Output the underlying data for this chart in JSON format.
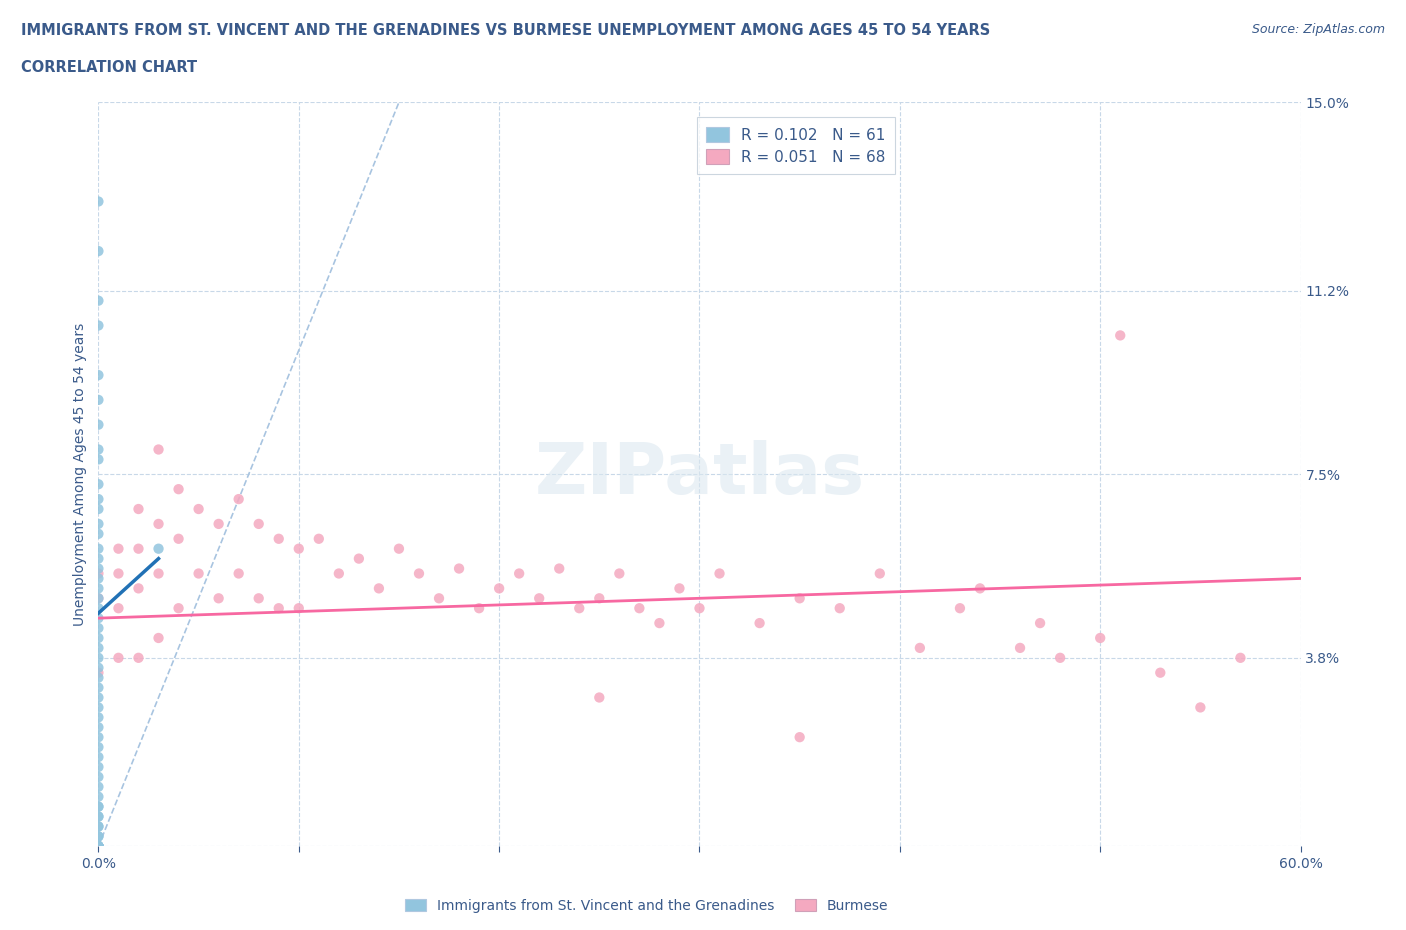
{
  "title_line1": "IMMIGRANTS FROM ST. VINCENT AND THE GRENADINES VS BURMESE UNEMPLOYMENT AMONG AGES 45 TO 54 YEARS",
  "title_line2": "CORRELATION CHART",
  "source_text": "Source: ZipAtlas.com",
  "ylabel": "Unemployment Among Ages 45 to 54 years",
  "xlim": [
    0.0,
    0.6
  ],
  "ylim": [
    0.0,
    0.15
  ],
  "ytick_positions": [
    0.0,
    0.038,
    0.075,
    0.112,
    0.15
  ],
  "yticklabels_right": [
    "",
    "3.8%",
    "7.5%",
    "11.2%",
    "15.0%"
  ],
  "color_blue_scatter": "#92c5de",
  "color_pink_scatter": "#f4a9c0",
  "color_blue_line": "#2171b5",
  "color_pink_line": "#f768a1",
  "color_diag": "#a8c4e0",
  "color_grid": "#c8d8e8",
  "color_text": "#3a5a8a",
  "legend_label1": "Immigrants from St. Vincent and the Grenadines",
  "legend_label2": "Burmese",
  "blue_x": [
    0.0,
    0.0,
    0.0,
    0.0,
    0.0,
    0.0,
    0.0,
    0.0,
    0.0,
    0.0,
    0.0,
    0.0,
    0.0,
    0.0,
    0.0,
    0.0,
    0.0,
    0.0,
    0.0,
    0.0,
    0.0,
    0.0,
    0.0,
    0.0,
    0.0,
    0.0,
    0.0,
    0.0,
    0.0,
    0.0,
    0.0,
    0.0,
    0.0,
    0.0,
    0.0,
    0.0,
    0.0,
    0.0,
    0.0,
    0.0,
    0.0,
    0.0,
    0.0,
    0.0,
    0.0,
    0.0,
    0.0,
    0.0,
    0.0,
    0.0,
    0.0,
    0.0,
    0.0,
    0.0,
    0.0,
    0.0,
    0.0,
    0.0,
    0.0,
    0.0,
    0.03
  ],
  "blue_y": [
    0.13,
    0.12,
    0.11,
    0.105,
    0.095,
    0.09,
    0.085,
    0.08,
    0.078,
    0.073,
    0.07,
    0.068,
    0.065,
    0.063,
    0.06,
    0.058,
    0.056,
    0.054,
    0.052,
    0.05,
    0.048,
    0.046,
    0.044,
    0.042,
    0.04,
    0.038,
    0.036,
    0.034,
    0.032,
    0.03,
    0.028,
    0.026,
    0.024,
    0.022,
    0.02,
    0.018,
    0.016,
    0.014,
    0.012,
    0.01,
    0.008,
    0.006,
    0.004,
    0.002,
    0.0,
    0.0,
    0.0,
    0.0,
    0.0,
    0.0,
    0.0,
    0.0,
    0.0,
    0.0,
    0.0,
    0.0,
    0.002,
    0.004,
    0.006,
    0.008,
    0.06
  ],
  "pink_x": [
    0.0,
    0.0,
    0.0,
    0.01,
    0.01,
    0.01,
    0.01,
    0.02,
    0.02,
    0.02,
    0.02,
    0.03,
    0.03,
    0.03,
    0.03,
    0.04,
    0.04,
    0.04,
    0.05,
    0.05,
    0.06,
    0.06,
    0.07,
    0.07,
    0.08,
    0.08,
    0.09,
    0.09,
    0.1,
    0.1,
    0.11,
    0.12,
    0.13,
    0.14,
    0.15,
    0.16,
    0.17,
    0.18,
    0.19,
    0.2,
    0.21,
    0.22,
    0.23,
    0.24,
    0.25,
    0.26,
    0.27,
    0.28,
    0.29,
    0.3,
    0.31,
    0.33,
    0.35,
    0.37,
    0.39,
    0.41,
    0.43,
    0.44,
    0.46,
    0.47,
    0.48,
    0.5,
    0.51,
    0.53,
    0.55,
    0.57,
    0.25,
    0.35
  ],
  "pink_y": [
    0.055,
    0.05,
    0.035,
    0.06,
    0.055,
    0.048,
    0.038,
    0.068,
    0.06,
    0.052,
    0.038,
    0.08,
    0.065,
    0.055,
    0.042,
    0.072,
    0.062,
    0.048,
    0.068,
    0.055,
    0.065,
    0.05,
    0.07,
    0.055,
    0.065,
    0.05,
    0.062,
    0.048,
    0.06,
    0.048,
    0.062,
    0.055,
    0.058,
    0.052,
    0.06,
    0.055,
    0.05,
    0.056,
    0.048,
    0.052,
    0.055,
    0.05,
    0.056,
    0.048,
    0.05,
    0.055,
    0.048,
    0.045,
    0.052,
    0.048,
    0.055,
    0.045,
    0.05,
    0.048,
    0.055,
    0.04,
    0.048,
    0.052,
    0.04,
    0.045,
    0.038,
    0.042,
    0.103,
    0.035,
    0.028,
    0.038,
    0.03,
    0.022
  ],
  "blue_line_x": [
    0.0,
    0.03
  ],
  "blue_line_y": [
    0.047,
    0.058
  ],
  "pink_line_x": [
    0.0,
    0.6
  ],
  "pink_line_y": [
    0.046,
    0.054
  ],
  "diag_line_x": [
    0.0,
    0.15
  ],
  "diag_line_y": [
    0.0,
    0.15
  ]
}
